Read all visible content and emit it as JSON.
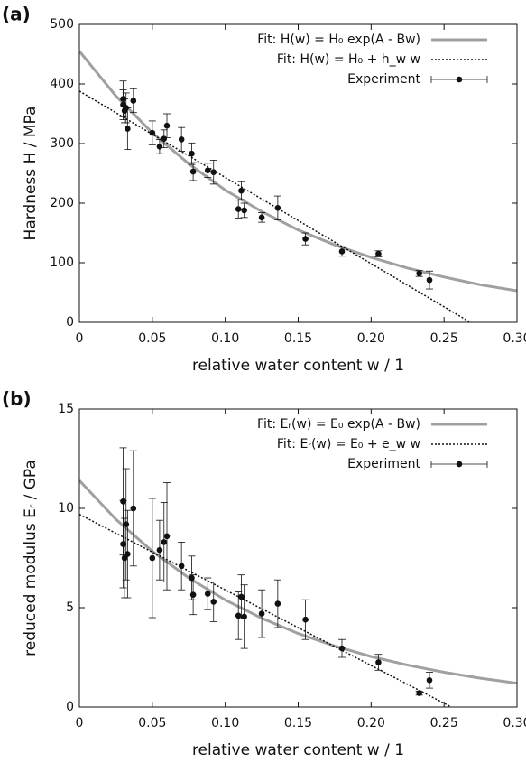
{
  "chart_data": [
    {
      "type": "scatter",
      "panel_label": "(a)",
      "x_label": "relative water content w / 1",
      "y_label": "Hardness H / MPa",
      "xlim": [
        0,
        0.3
      ],
      "xticks": [
        0,
        0.05,
        {
          "value": 0.1,
          "label": "0.10"
        },
        0.15,
        {
          "value": 0.2,
          "label": "0.20"
        },
        0.25,
        {
          "value": 0.3,
          "label": "0.30"
        }
      ],
      "ylim": [
        0,
        500
      ],
      "yticks": [
        0,
        100,
        200,
        300,
        400,
        500
      ],
      "legend": "upper right",
      "series": [
        {
          "name": "Fit: H(w) = H₀ exp(A - Bw)",
          "kind": "line",
          "color": "#a0a0a0",
          "x": [
            0,
            0.025,
            0.05,
            0.075,
            0.1,
            0.125,
            0.15,
            0.175,
            0.2,
            0.225,
            0.25,
            0.275,
            0.3
          ],
          "values": [
            455,
            380,
            318,
            266,
            222,
            186,
            155,
            130,
            109,
            91,
            76,
            63,
            53
          ]
        },
        {
          "name": "Fit: H(w) = H₀ + h_w w",
          "kind": "dotted",
          "color": "#111111",
          "x": [
            0,
            0.268
          ],
          "values": [
            388,
            0
          ]
        },
        {
          "name": "Experiment",
          "kind": "errorbar",
          "color": "#111111",
          "x": [
            0.03,
            0.03,
            0.031,
            0.032,
            0.033,
            0.037,
            0.05,
            0.055,
            0.058,
            0.06,
            0.07,
            0.077,
            0.078,
            0.088,
            0.092,
            0.109,
            0.111,
            0.113,
            0.125,
            0.136,
            0.155,
            0.18,
            0.205,
            0.233,
            0.24
          ],
          "values": [
            375,
            365,
            355,
            360,
            325,
            372,
            318,
            295,
            308,
            330,
            307,
            283,
            253,
            255,
            252,
            190,
            221,
            188,
            176,
            192,
            140,
            119,
            115,
            82,
            71
          ],
          "errors": [
            30,
            25,
            20,
            25,
            35,
            20,
            20,
            12,
            15,
            20,
            20,
            18,
            15,
            12,
            20,
            15,
            15,
            12,
            8,
            20,
            10,
            8,
            5,
            5,
            15
          ]
        }
      ]
    },
    {
      "type": "scatter",
      "panel_label": "(b)",
      "x_label": "relative water content w / 1",
      "y_label": "reduced modulus Eᵣ / GPa",
      "xlim": [
        0,
        0.3
      ],
      "xticks": [
        0,
        0.05,
        {
          "value": 0.1,
          "label": "0.10"
        },
        0.15,
        {
          "value": 0.2,
          "label": "0.20"
        },
        0.25,
        {
          "value": 0.3,
          "label": "0.30"
        }
      ],
      "ylim": [
        0,
        15
      ],
      "yticks": [
        0,
        5,
        10,
        15
      ],
      "legend": "upper right",
      "series": [
        {
          "name": "Fit: Eᵣ(w) = E₀ exp(A - Bw)",
          "kind": "line",
          "color": "#a0a0a0",
          "x": [
            0,
            0.025,
            0.05,
            0.075,
            0.1,
            0.125,
            0.15,
            0.175,
            0.2,
            0.225,
            0.25,
            0.275,
            0.3
          ],
          "values": [
            11.4,
            9.45,
            7.84,
            6.5,
            5.39,
            4.47,
            3.7,
            3.07,
            2.54,
            2.11,
            1.75,
            1.45,
            1.2
          ]
        },
        {
          "name": "Fit: Eᵣ(w) = E₀ + e_w w",
          "kind": "dotted",
          "color": "#111111",
          "x": [
            0,
            0.255
          ],
          "values": [
            9.7,
            0
          ]
        },
        {
          "name": "Experiment",
          "kind": "errorbar",
          "color": "#111111",
          "x": [
            0.03,
            0.03,
            0.031,
            0.032,
            0.033,
            0.037,
            0.05,
            0.055,
            0.058,
            0.06,
            0.07,
            0.077,
            0.078,
            0.088,
            0.092,
            0.109,
            0.111,
            0.113,
            0.125,
            0.136,
            0.155,
            0.18,
            0.205,
            0.233,
            0.24
          ],
          "values": [
            10.35,
            8.2,
            7.5,
            9.2,
            7.7,
            10.0,
            7.5,
            7.9,
            8.3,
            8.6,
            7.1,
            6.5,
            5.65,
            5.7,
            5.3,
            4.6,
            5.55,
            4.55,
            4.7,
            5.2,
            4.4,
            2.95,
            2.25,
            0.7,
            1.35
          ],
          "errors": [
            2.7,
            2.2,
            2.0,
            2.8,
            2.2,
            2.9,
            3.0,
            1.5,
            2.0,
            2.7,
            1.2,
            1.1,
            1.0,
            0.8,
            1.0,
            1.2,
            1.1,
            1.6,
            1.2,
            1.2,
            1.0,
            0.45,
            0.4,
            0.1,
            0.4
          ]
        }
      ]
    }
  ]
}
